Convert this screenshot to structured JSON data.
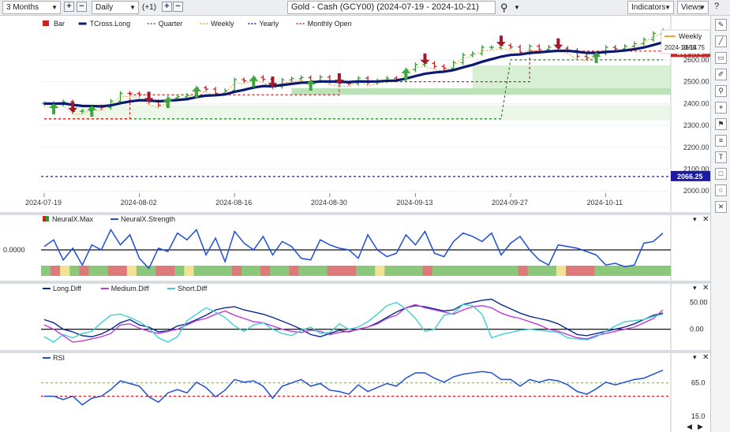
{
  "toolbar": {
    "period_select": "3 Months",
    "zoom_in": "+",
    "zoom_out": "−",
    "interval_select": "Daily",
    "offset_label": "(+1)",
    "nav_plus": "+",
    "nav_minus": "−",
    "symbol_title": "Gold - Cash (GCY00) (2024-07-19 - 2024-10-21)",
    "indicators_label": "Indicators",
    "views_label": "Views",
    "help": "?"
  },
  "main_legend": [
    {
      "label": "Bar",
      "color": "#2e8b2e"
    },
    {
      "label": "TCross.Long",
      "color": "#0a1a6e"
    },
    {
      "label": "Quarter",
      "color": "#2e7d32"
    },
    {
      "label": "Weekly",
      "color": "#f0a030"
    },
    {
      "label": "Yearly",
      "color": "#1a1aa6"
    },
    {
      "label": "Monthly Open",
      "color": "#cc1f1f"
    }
  ],
  "tooltip": {
    "label": "Weekly",
    "date": "2024-10-14",
    "value": "2655.75"
  },
  "price_tags": {
    "current": "2634.70",
    "yearly": "2066.25"
  },
  "sidebar_icons": [
    "pen-icon",
    "line-icon",
    "horizontal-line-icon",
    "brush-icon",
    "magnet-icon",
    "crosshair-icon",
    "flag-icon",
    "fib-icon",
    "text-icon",
    "rect-icon",
    "circle-icon",
    "close-icon"
  ],
  "chart_data": [
    {
      "type": "bar",
      "title": "Gold - Cash (GCY00) Daily",
      "x": [
        "2024-07-19",
        "2024-07-22",
        "2024-07-23",
        "2024-07-24",
        "2024-07-25",
        "2024-07-26",
        "2024-07-29",
        "2024-07-30",
        "2024-07-31",
        "2024-08-01",
        "2024-08-02",
        "2024-08-05",
        "2024-08-06",
        "2024-08-07",
        "2024-08-08",
        "2024-08-09",
        "2024-08-12",
        "2024-08-13",
        "2024-08-14",
        "2024-08-15",
        "2024-08-16",
        "2024-08-19",
        "2024-08-20",
        "2024-08-21",
        "2024-08-22",
        "2024-08-23",
        "2024-08-26",
        "2024-08-27",
        "2024-08-28",
        "2024-08-29",
        "2024-08-30",
        "2024-09-03",
        "2024-09-04",
        "2024-09-05",
        "2024-09-06",
        "2024-09-09",
        "2024-09-10",
        "2024-09-11",
        "2024-09-12",
        "2024-09-13",
        "2024-09-16",
        "2024-09-17",
        "2024-09-18",
        "2024-09-19",
        "2024-09-20",
        "2024-09-23",
        "2024-09-24",
        "2024-09-25",
        "2024-09-26",
        "2024-09-27",
        "2024-09-30",
        "2024-10-01",
        "2024-10-02",
        "2024-10-03",
        "2024-10-04",
        "2024-10-07",
        "2024-10-08",
        "2024-10-09",
        "2024-10-10",
        "2024-10-11",
        "2024-10-14",
        "2024-10-15",
        "2024-10-16",
        "2024-10-17",
        "2024-10-18",
        "2024-10-21"
      ],
      "close": [
        2400,
        2396,
        2408,
        2364,
        2366,
        2385,
        2382,
        2411,
        2447,
        2446,
        2441,
        2409,
        2393,
        2425,
        2431,
        2438,
        2472,
        2466,
        2447,
        2459,
        2509,
        2504,
        2520,
        2511,
        2478,
        2508,
        2514,
        2519,
        2504,
        2521,
        2500,
        2493,
        2492,
        2516,
        2496,
        2504,
        2516,
        2512,
        2555,
        2578,
        2584,
        2570,
        2561,
        2587,
        2622,
        2629,
        2657,
        2657,
        2666,
        2659,
        2635,
        2662,
        2647,
        2658,
        2653,
        2643,
        2616,
        2609,
        2630,
        2657,
        2650,
        2662,
        2674,
        2693,
        2721,
        2734
      ],
      "xtick_labels": [
        "2024-07-19",
        "2024-08-02",
        "2024-08-16",
        "2024-08-30",
        "2024-09-13",
        "2024-09-27",
        "2024-10-11"
      ],
      "ytick_labels": [
        "2600.00",
        "2500.00",
        "2400.00",
        "2300.00",
        "2200.00",
        "2100.00",
        "2000.00"
      ],
      "ylim": [
        1990,
        2780
      ],
      "levels": {
        "yearly": 2066.25,
        "current": 2634.7,
        "weekly": 2655.75
      },
      "series_labels": [
        "Bar",
        "TCross.Long",
        "Quarter",
        "Weekly",
        "Yearly",
        "Monthly Open"
      ]
    },
    {
      "type": "line",
      "title": "NeuralX",
      "series": [
        {
          "name": "NeuralX.Strength",
          "values": [
            0.2,
            0.6,
            -0.6,
            0.1,
            -0.9,
            0.3,
            0.0,
            1.2,
            0.3,
            0.9,
            -0.5,
            -1.1,
            0.1,
            -0.1,
            1.0,
            0.6,
            1.2,
            -0.3,
            0.7,
            -0.7,
            1.1,
            0.4,
            0.0,
            0.8,
            -0.3,
            0.5,
            0.2,
            -0.5,
            -0.6,
            0.6,
            0.3,
            0.1,
            0.0,
            -0.5,
            0.9,
            0.0,
            -0.4,
            -0.2,
            0.9,
            0.3,
            1.1,
            -0.2,
            -0.4,
            0.5,
            1.0,
            0.8,
            0.5,
            1.0,
            -0.3,
            0.4,
            0.8,
            0.0,
            -0.6,
            -0.9,
            0.3,
            0.2,
            0.1,
            -0.1,
            -0.3,
            -0.9,
            -0.8,
            -1.0,
            -0.9,
            0.4,
            0.5,
            1.0
          ]
        }
      ],
      "ytick_labels": [
        "0.0000"
      ],
      "ylim": [
        -1.5,
        1.5
      ],
      "legend": [
        "NeuralX.Max",
        "NeuralX.Strength"
      ],
      "max_band": [
        "g",
        "r",
        "y",
        "g",
        "r",
        "g",
        "g",
        "r",
        "r",
        "y",
        "g",
        "g",
        "r",
        "r",
        "g",
        "y",
        "g",
        "g",
        "g",
        "g",
        "r",
        "g",
        "g",
        "r",
        "g",
        "g",
        "r",
        "g",
        "g",
        "g",
        "r",
        "r",
        "r",
        "g",
        "g",
        "y",
        "g",
        "g",
        "g",
        "g",
        "r",
        "g",
        "g",
        "g",
        "g",
        "g",
        "g",
        "g",
        "g",
        "g",
        "r",
        "g",
        "g",
        "g",
        "y",
        "r",
        "r",
        "r",
        "g",
        "g",
        "g",
        "g",
        "g",
        "g",
        "g",
        "g"
      ]
    },
    {
      "type": "line",
      "title": "Diff",
      "series": [
        {
          "name": "Long.Diff",
          "values": [
            18,
            12,
            0,
            -5,
            -12,
            -14,
            -9,
            0,
            12,
            18,
            8,
            4,
            -5,
            -3,
            6,
            10,
            18,
            26,
            36,
            40,
            42,
            36,
            32,
            28,
            22,
            15,
            8,
            0,
            -10,
            -14,
            -8,
            -2,
            -5,
            0,
            4,
            12,
            22,
            32,
            40,
            44,
            42,
            38,
            34,
            36,
            46,
            50,
            54,
            56,
            46,
            38,
            30,
            24,
            20,
            16,
            10,
            0,
            -10,
            -12,
            -8,
            -4,
            0,
            4,
            10,
            18,
            26,
            30
          ]
        },
        {
          "name": "Medium.Diff",
          "values": [
            8,
            0,
            -12,
            -24,
            -22,
            -18,
            -14,
            -8,
            8,
            10,
            2,
            -4,
            -8,
            -4,
            0,
            8,
            16,
            20,
            28,
            34,
            26,
            20,
            14,
            12,
            6,
            0,
            -4,
            -6,
            -2,
            -4,
            -10,
            -6,
            -4,
            0,
            4,
            10,
            20,
            26,
            40,
            46,
            40,
            36,
            32,
            28,
            36,
            42,
            44,
            40,
            30,
            24,
            20,
            14,
            8,
            0,
            -4,
            -10,
            -16,
            -18,
            -12,
            -8,
            -4,
            0,
            4,
            12,
            20,
            36
          ]
        },
        {
          "name": "Short.Diff",
          "values": [
            -14,
            -24,
            -10,
            -16,
            -8,
            -4,
            12,
            26,
            28,
            22,
            14,
            2,
            -16,
            -24,
            -14,
            16,
            28,
            40,
            32,
            22,
            6,
            -4,
            8,
            12,
            0,
            -8,
            -12,
            -2,
            4,
            -8,
            -6,
            10,
            0,
            4,
            14,
            28,
            44,
            50,
            38,
            20,
            -4,
            0,
            26,
            30,
            46,
            44,
            28,
            -16,
            -10,
            -6,
            -2,
            0,
            -2,
            -4,
            -6,
            -16,
            -18,
            -20,
            -14,
            -4,
            6,
            14,
            16,
            18,
            24,
            28
          ]
        }
      ],
      "ytick_labels": [
        "50.00",
        "0.00"
      ],
      "ylim": [
        -30,
        70
      ],
      "legend": [
        "Long.Diff",
        "Medium.Diff",
        "Short.Diff"
      ]
    },
    {
      "type": "line",
      "title": "RSI",
      "series": [
        {
          "name": "RSI",
          "values": [
            45,
            45,
            40,
            45,
            32,
            42,
            45,
            55,
            68,
            64,
            60,
            44,
            36,
            50,
            55,
            50,
            66,
            58,
            44,
            54,
            70,
            66,
            68,
            60,
            42,
            60,
            65,
            70,
            60,
            64,
            54,
            52,
            48,
            62,
            52,
            58,
            64,
            60,
            72,
            80,
            80,
            72,
            66,
            74,
            78,
            80,
            82,
            80,
            70,
            70,
            60,
            70,
            66,
            70,
            68,
            62,
            52,
            48,
            56,
            66,
            62,
            66,
            70,
            72,
            78,
            84
          ]
        }
      ],
      "ytick_labels": [
        "65.0",
        "15.0"
      ],
      "ylim": [
        15,
        100
      ],
      "levels": {
        "upper": 65,
        "lower": 45
      },
      "legend": [
        "RSI"
      ]
    }
  ]
}
